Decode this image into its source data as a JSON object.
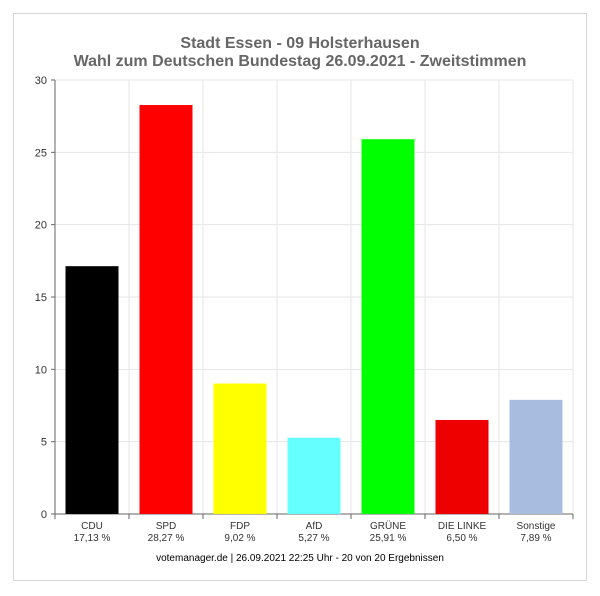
{
  "chart_data": {
    "type": "bar",
    "title": "Stadt Essen - 09 Holsterhausen",
    "subtitle": "Wahl zum Deutschen Bundestag 26.09.2021  - Zweitstimmen",
    "categories": [
      "CDU",
      "SPD",
      "FDP",
      "AfD",
      "GRÜNE",
      "DIE LINKE",
      "Sonstige"
    ],
    "value_labels": [
      "17,13 %",
      "28,27 %",
      "9,02 %",
      "5,27 %",
      "25,91 %",
      "6,50 %",
      "7,89 %"
    ],
    "values": [
      17.13,
      28.27,
      9.02,
      5.27,
      25.91,
      6.5,
      7.89
    ],
    "colors": [
      "#000000",
      "#ff0000",
      "#ffff00",
      "#66ffff",
      "#00ff00",
      "#ee0000",
      "#a8bce0"
    ],
    "ylim": [
      0,
      30
    ],
    "yticks": [
      0,
      5,
      10,
      15,
      20,
      25,
      30
    ],
    "grid": true,
    "xlabel": "",
    "ylabel": ""
  },
  "footer": "votemanager.de | 26.09.2021 22:25 Uhr - 20 von 20 Ergebnissen"
}
